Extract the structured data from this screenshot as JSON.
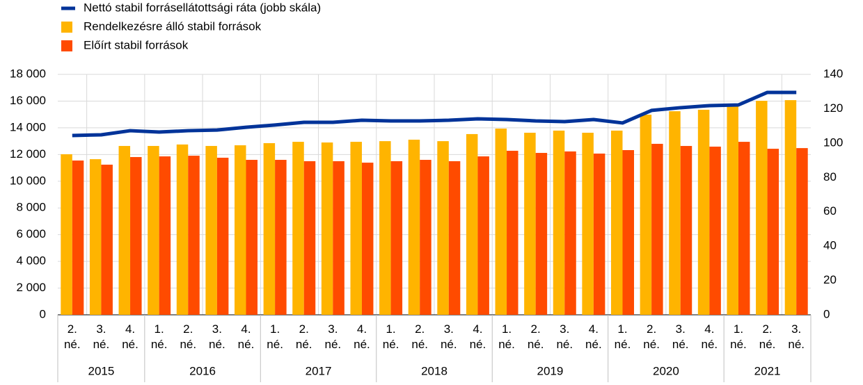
{
  "chart_data": {
    "type": "bar-line",
    "categories": [
      "2. né.",
      "3. né.",
      "4. né.",
      "1. né.",
      "2. né.",
      "3. né.",
      "4. né.",
      "1. né.",
      "2. né.",
      "3. né.",
      "4. né.",
      "1. né.",
      "2. né.",
      "3. né.",
      "4. né.",
      "1. né.",
      "2. né.",
      "3. né.",
      "4. né.",
      "1. né.",
      "2. né.",
      "3. né.",
      "4. né.",
      "1. né.",
      "2. né.",
      "3. né."
    ],
    "years": [
      "2015",
      "2015",
      "2015",
      "2016",
      "2016",
      "2016",
      "2016",
      "2017",
      "2017",
      "2017",
      "2017",
      "2018",
      "2018",
      "2018",
      "2018",
      "2019",
      "2019",
      "2019",
      "2019",
      "2020",
      "2020",
      "2020",
      "2020",
      "2021",
      "2021",
      "2021"
    ],
    "series": [
      {
        "name": "Nettó stabil forrásellátottsági ráta (jobb skála)",
        "color": "#003399",
        "type": "line",
        "axis": "y2",
        "values": [
          104.4,
          104.8,
          107.2,
          106.4,
          107.2,
          107.6,
          109.2,
          110.5,
          112.1,
          112.1,
          113.3,
          112.9,
          112.9,
          113.3,
          114.1,
          113.7,
          112.9,
          112.5,
          113.7,
          111.7,
          119.0,
          120.6,
          121.8,
          122.2,
          129.5,
          129.5
        ]
      },
      {
        "name": "Rendelkezésre álló stabil források",
        "color": "#ffb400",
        "type": "bar",
        "values": [
          12020,
          11650,
          12640,
          12640,
          12750,
          12640,
          12690,
          12850,
          12950,
          12900,
          12950,
          13000,
          13110,
          13000,
          13530,
          13940,
          13630,
          13790,
          13630,
          13790,
          14980,
          15240,
          15350,
          15710,
          16020,
          16070
        ]
      },
      {
        "name": "Előírt stabil források",
        "color": "#ff4b00",
        "type": "bar",
        "values": [
          11550,
          11240,
          11810,
          11860,
          11910,
          11760,
          11600,
          11600,
          11500,
          11500,
          11390,
          11500,
          11600,
          11500,
          11860,
          12280,
          12120,
          12230,
          12070,
          12330,
          12800,
          12640,
          12590,
          12950,
          12430,
          12480
        ]
      }
    ],
    "ylim": [
      0,
      18000
    ],
    "yticks": [
      0,
      {
        "value": 2000,
        "label": "2 000"
      },
      {
        "value": 4000,
        "label": "4 000"
      },
      {
        "value": 6000,
        "label": "6 000"
      },
      {
        "value": 8000,
        "label": "8 000"
      },
      {
        "value": 10000,
        "label": "10 000"
      },
      {
        "value": 12000,
        "label": "12 000"
      },
      {
        "value": 14000,
        "label": "14 000"
      },
      {
        "value": 16000,
        "label": "16 000"
      },
      {
        "value": 18000,
        "label": "18 000"
      }
    ],
    "y2lim": [
      0,
      140
    ],
    "y2ticks": [
      0,
      20,
      40,
      60,
      80,
      100,
      120,
      140
    ],
    "grid": true
  }
}
